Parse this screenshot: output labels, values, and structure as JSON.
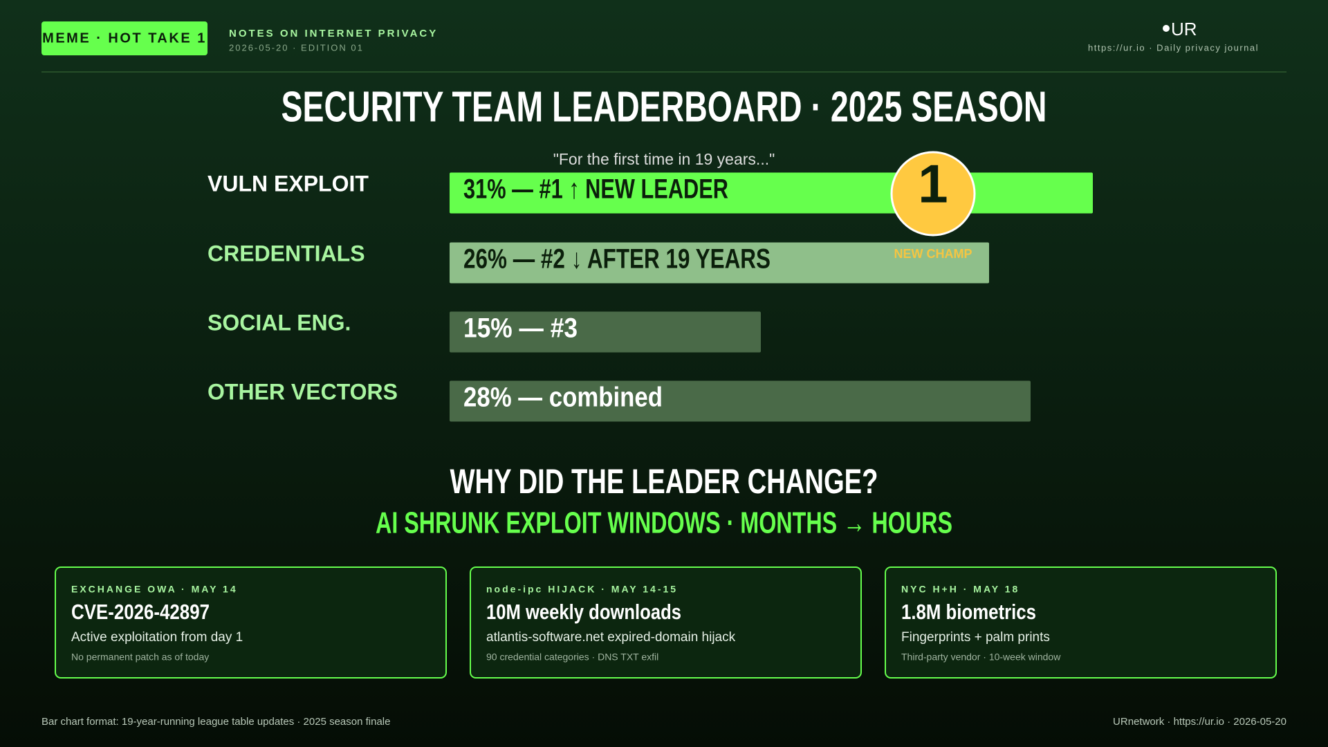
{
  "header": {
    "badge": "MEME · HOT TAKE 1",
    "kicker": "NOTES ON INTERNET PRIVACY",
    "dateline": "2026-05-20 · EDITION 01",
    "logo": "UR",
    "tagline": "https://ur.io · Daily privacy journal"
  },
  "chart_data": {
    "type": "bar",
    "orientation": "horizontal",
    "title": "SECURITY TEAM LEADERBOARD · 2025 SEASON",
    "annotation": "\"For the first time in 19 years...\"",
    "categories": [
      "VULN EXPLOIT",
      "CREDENTIALS",
      "SOCIAL ENG.",
      "OTHER VECTORS"
    ],
    "values": [
      31,
      26,
      15,
      28
    ],
    "value_labels": [
      "31% — #1 ↑ NEW LEADER",
      "26% — #2 ↓ AFTER 19 YEARS",
      "15% — #3",
      "28% — combined"
    ],
    "colors": [
      "#66ff4d",
      "#8fbf8a",
      "#4a6a48",
      "#4a6a48"
    ],
    "label_colors": [
      "#ffffff",
      "#a8f5a0",
      "#a8f5a0",
      "#a8f5a0"
    ],
    "value_label_colors": [
      "#0b1f0b",
      "#0b1f0b",
      "#ffffff",
      "#ffffff"
    ],
    "badge": "1",
    "badge_note": "NEW CHAMP"
  },
  "section": {
    "title": "WHY DID THE LEADER CHANGE?",
    "subtitle": "AI SHRUNK EXPLOIT WINDOWS · MONTHS → HOURS"
  },
  "cards": [
    {
      "kicker": "EXCHANGE OWA · MAY 14",
      "headline": "CVE-2026-42897",
      "detail": "Active exploitation from day 1",
      "note": "No permanent patch as of today"
    },
    {
      "kicker": "node-ipc HIJACK · MAY 14-15",
      "headline": "10M weekly downloads",
      "detail": "atlantis-software.net expired-domain hijack",
      "note": "90 credential categories · DNS TXT exfil"
    },
    {
      "kicker": "NYC H+H · MAY 18",
      "headline": "1.8M biometrics",
      "detail": "Fingerprints + palm prints",
      "note": "Third-party vendor · 10-week window"
    }
  ],
  "footer": {
    "left": "Bar chart format: 19-year-running league table updates · 2025 season finale",
    "right": "URnetwork · https://ur.io · 2026-05-20"
  }
}
